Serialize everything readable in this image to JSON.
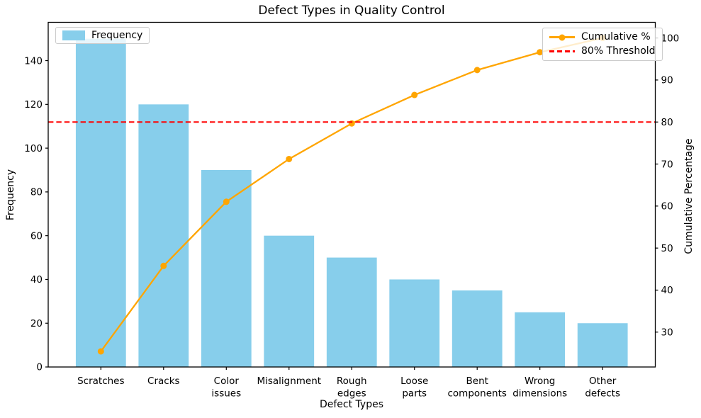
{
  "title": "Defect Types in Quality Control",
  "axes": {
    "xlabel": "Defect Types",
    "ylabel_left": "Frequency",
    "ylabel_right": "Cumulative Percentage"
  },
  "legends": {
    "frequency": {
      "label": "Frequency"
    },
    "cumulative": {
      "label": "Cumulative %"
    },
    "threshold": {
      "label": "80% Threshold"
    }
  },
  "colors": {
    "bar": "#87CEEB",
    "line": "#FFA500",
    "threshold": "#FF0000",
    "axis": "#000000"
  },
  "chart_data": {
    "type": "pareto (bar + line)",
    "title": "Defect Types in Quality Control",
    "xlabel": "Defect Types",
    "ylabel": "Frequency",
    "ylabel_right": "Cumulative Percentage",
    "categories": [
      "Scratches",
      "Cracks",
      "Color issues",
      "Misalignment",
      "Rough edges",
      "Loose parts",
      "Bent components",
      "Wrong dimensions",
      "Other defects"
    ],
    "series": [
      {
        "name": "Frequency",
        "type": "bar",
        "axis": "left",
        "color": "#87CEEB",
        "values": [
          150,
          120,
          90,
          60,
          50,
          40,
          35,
          25,
          20
        ]
      },
      {
        "name": "Cumulative %",
        "type": "line",
        "axis": "right",
        "color": "#FFA500",
        "marker": "circle",
        "values": [
          25.42,
          45.76,
          61.02,
          71.19,
          79.66,
          86.44,
          92.37,
          96.61,
          100.0
        ]
      }
    ],
    "threshold_line": {
      "label": "80% Threshold",
      "value": 80,
      "axis": "right",
      "color": "#FF0000",
      "style": "dashed"
    },
    "left_axis": {
      "ticks": [
        0,
        20,
        40,
        60,
        80,
        100,
        120,
        140
      ],
      "ylim": [
        0,
        157.5
      ]
    },
    "right_axis": {
      "ticks": [
        30,
        40,
        50,
        60,
        70,
        80,
        90,
        100
      ],
      "ylim": [
        21.7,
        103.73
      ]
    },
    "grid": false,
    "legend_positions": [
      "upper left",
      "upper right"
    ]
  }
}
